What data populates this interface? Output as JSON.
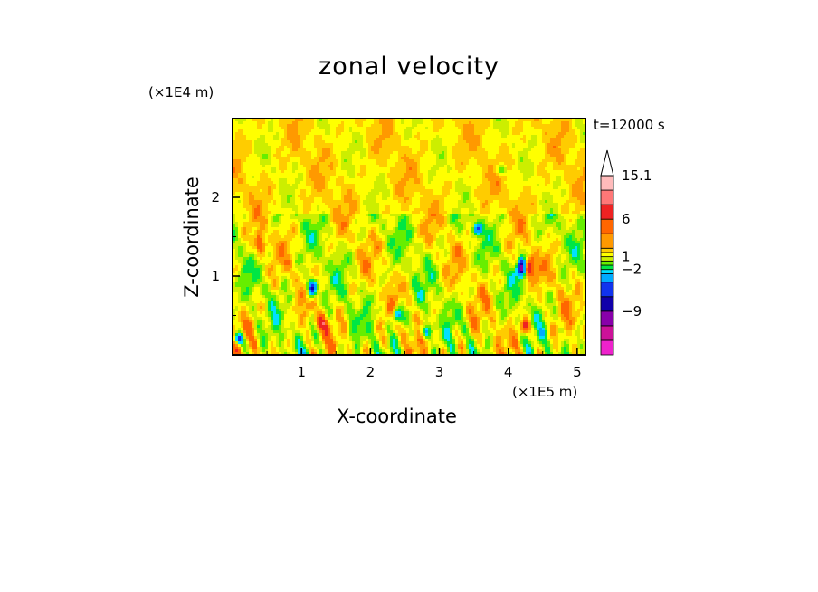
{
  "chart_data": {
    "type": "heatmap",
    "title": "zonal velocity",
    "xlabel": "X-coordinate",
    "ylabel": "Z-coordinate",
    "x_scale_label": "(×1E5 m)",
    "y_scale_label": "(×1E4 m)",
    "time_label": "t=12000 s",
    "xlim": [
      0,
      5.12
    ],
    "ylim": [
      0,
      3.0
    ],
    "x_ticks": [
      "1",
      "2",
      "3",
      "4",
      "5"
    ],
    "y_ticks": [
      "1",
      "2"
    ],
    "x_tick_values": [
      1,
      2,
      3,
      4,
      5
    ],
    "y_tick_values": [
      1,
      2
    ],
    "colorbar": {
      "labels": [
        "15.1",
        "6",
        "1",
        "−2",
        "−9"
      ],
      "levels": [
        -13,
        -11,
        -9,
        -7,
        -5,
        -3,
        -2,
        -1,
        0,
        1,
        2,
        3,
        4,
        6,
        8,
        11,
        13,
        15.1
      ],
      "colors": [
        "#ee22cc",
        "#cc1199",
        "#8800aa",
        "#1100aa",
        "#1133ee",
        "#00aaff",
        "#00e0ff",
        "#00e644",
        "#66ee00",
        "#ccee00",
        "#ffff00",
        "#ffcc00",
        "#ff9900",
        "#ff6600",
        "#ee2222",
        "#ff7777",
        "#ffbbbb",
        "#ffffff"
      ],
      "extend_max": true
    },
    "field_description_values": {
      "dominant_range": [
        -1,
        3
      ],
      "max_shown": 15.1,
      "min_shown": -13
    }
  }
}
